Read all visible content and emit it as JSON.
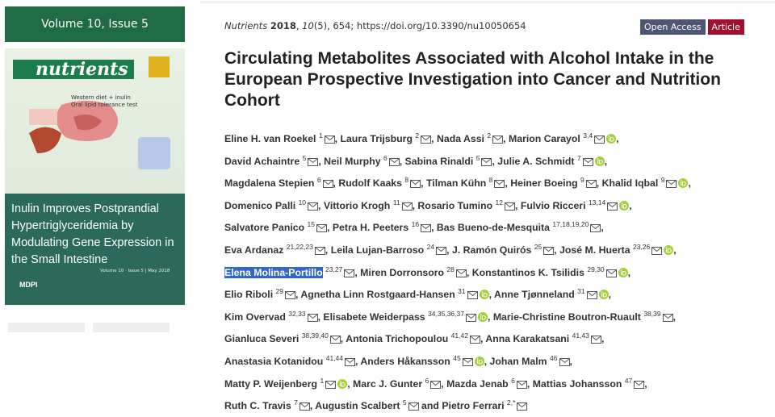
{
  "sidebar": {
    "issue_header": "Volume 10, Issue 5",
    "cover": {
      "journal": "nutrients",
      "diagram_labels": [
        "Western diet + inulin",
        "Oral lipid tolerance test"
      ],
      "title": "Inulin Improves Postprandial Hypertriglyceridemia by Modulating Gene Expression in the Small Intestine",
      "footer": "Volume 10 · Issue 5 | May 2018",
      "publisher": "MDPI"
    }
  },
  "article": {
    "citation": {
      "journal": "Nutrients",
      "year": "2018",
      "volume": "10",
      "issue_pages": "(5), 654;",
      "doi": "https://doi.org/10.3390/nu10050654"
    },
    "badges": [
      "Open Access",
      "Article"
    ],
    "title": "Circulating Metabolites Associated with Alcohol Intake in the European Prospective Investigation into Cancer and Nutrition Cohort",
    "author_lines": [
      [
        {
          "name": "Eline H. van Roekel",
          "sup": "1",
          "sep": ","
        },
        {
          "name": "Laura Trijsburg",
          "sup": "2",
          "sep": ","
        },
        {
          "name": "Nada Assi",
          "sup": "2",
          "sep": ","
        },
        {
          "name": "Marion Carayol",
          "sup": "3,4",
          "orcid": true,
          "sep": ","
        }
      ],
      [
        {
          "name": "David Achaintre",
          "sup": "5",
          "sep": ","
        },
        {
          "name": "Neil Murphy",
          "sup": "6",
          "sep": ","
        },
        {
          "name": "Sabina Rinaldi",
          "sup": "5",
          "sep": ","
        },
        {
          "name": "Julie A. Schmidt",
          "sup": "7",
          "orcid": true,
          "sep": ","
        }
      ],
      [
        {
          "name": "Magdalena Stepien",
          "sup": "6",
          "sep": ","
        },
        {
          "name": "Rudolf Kaaks",
          "sup": "8",
          "sep": ","
        },
        {
          "name": "Tilman Kühn",
          "sup": "8",
          "sep": ","
        },
        {
          "name": "Heiner Boeing",
          "sup": "9",
          "sep": ","
        },
        {
          "name": "Khalid Iqbal",
          "sup": "9",
          "orcid": true,
          "sep": ","
        }
      ],
      [
        {
          "name": "Domenico Palli",
          "sup": "10",
          "sep": ","
        },
        {
          "name": "Vittorio Krogh",
          "sup": "11",
          "sep": ","
        },
        {
          "name": "Rosario Tumino",
          "sup": "12",
          "sep": ","
        },
        {
          "name": "Fulvio Ricceri",
          "sup": "13,14",
          "orcid": true,
          "sep": ","
        }
      ],
      [
        {
          "name": "Salvatore Panico",
          "sup": "15",
          "sep": ","
        },
        {
          "name": "Petra H. Peeters",
          "sup": "16",
          "sep": ","
        },
        {
          "name": "Bas Bueno-de-Mesquita",
          "sup": "17,18,19,20",
          "sep": ","
        }
      ],
      [
        {
          "name": "Eva Ardanaz",
          "sup": "21,22,23",
          "sep": ","
        },
        {
          "name": "Leila Lujan-Barroso",
          "sup": "24",
          "sep": ","
        },
        {
          "name": "J. Ramón Quirós",
          "sup": "25",
          "sep": ","
        },
        {
          "name": "José M. Huerta",
          "sup": "23,26",
          "orcid": true,
          "sep": ","
        }
      ],
      [
        {
          "name": "Elena Molina-Portillo",
          "sup": "23,27",
          "highlight": true,
          "sep": ","
        },
        {
          "name": "Miren Dorronsoro",
          "sup": "28",
          "sep": ","
        },
        {
          "name": "Konstantinos K. Tsilidis",
          "sup": "29,30",
          "orcid": true,
          "sep": ","
        }
      ],
      [
        {
          "name": "Elio Riboli",
          "sup": "29",
          "sep": ","
        },
        {
          "name": "Agnetha Linn Rostgaard-Hansen",
          "sup": "31",
          "orcid": true,
          "sep": ","
        },
        {
          "name": "Anne Tjønneland",
          "sup": "31",
          "orcid": true,
          "sep": ","
        }
      ],
      [
        {
          "name": "Kim Overvad",
          "sup": "32,33",
          "sep": ","
        },
        {
          "name": "Elisabete Weiderpass",
          "sup": "34,35,36,37",
          "orcid": true,
          "sep": ","
        },
        {
          "name": "Marie-Christine Boutron-Ruault",
          "sup": "38,39",
          "sep": ","
        }
      ],
      [
        {
          "name": "Gianluca Severi",
          "sup": "38,39,40",
          "sep": ","
        },
        {
          "name": "Antonia Trichopoulou",
          "sup": "41,42",
          "sep": ","
        },
        {
          "name": "Anna Karakatsani",
          "sup": "41,43",
          "sep": ","
        }
      ],
      [
        {
          "name": "Anastasia Kotanidou",
          "sup": "41,44",
          "sep": ","
        },
        {
          "name": "Anders Håkansson",
          "sup": "45",
          "orcid": true,
          "sep": ","
        },
        {
          "name": "Johan Malm",
          "sup": "46",
          "sep": ","
        }
      ],
      [
        {
          "name": "Matty P. Weijenberg",
          "sup": "1",
          "orcid": true,
          "sep": ","
        },
        {
          "name": "Marc J. Gunter",
          "sup": "6",
          "sep": ","
        },
        {
          "name": "Mazda Jenab",
          "sup": "6",
          "sep": ","
        },
        {
          "name": "Mattias Johansson",
          "sup": "47",
          "sep": ","
        }
      ],
      [
        {
          "name": "Ruth C. Travis",
          "sup": "7",
          "sep": ","
        },
        {
          "name": "Augustin Scalbert",
          "sup": "5",
          "sep": "and"
        },
        {
          "name": "Pietro Ferrari",
          "sup": "2,*"
        }
      ]
    ]
  }
}
